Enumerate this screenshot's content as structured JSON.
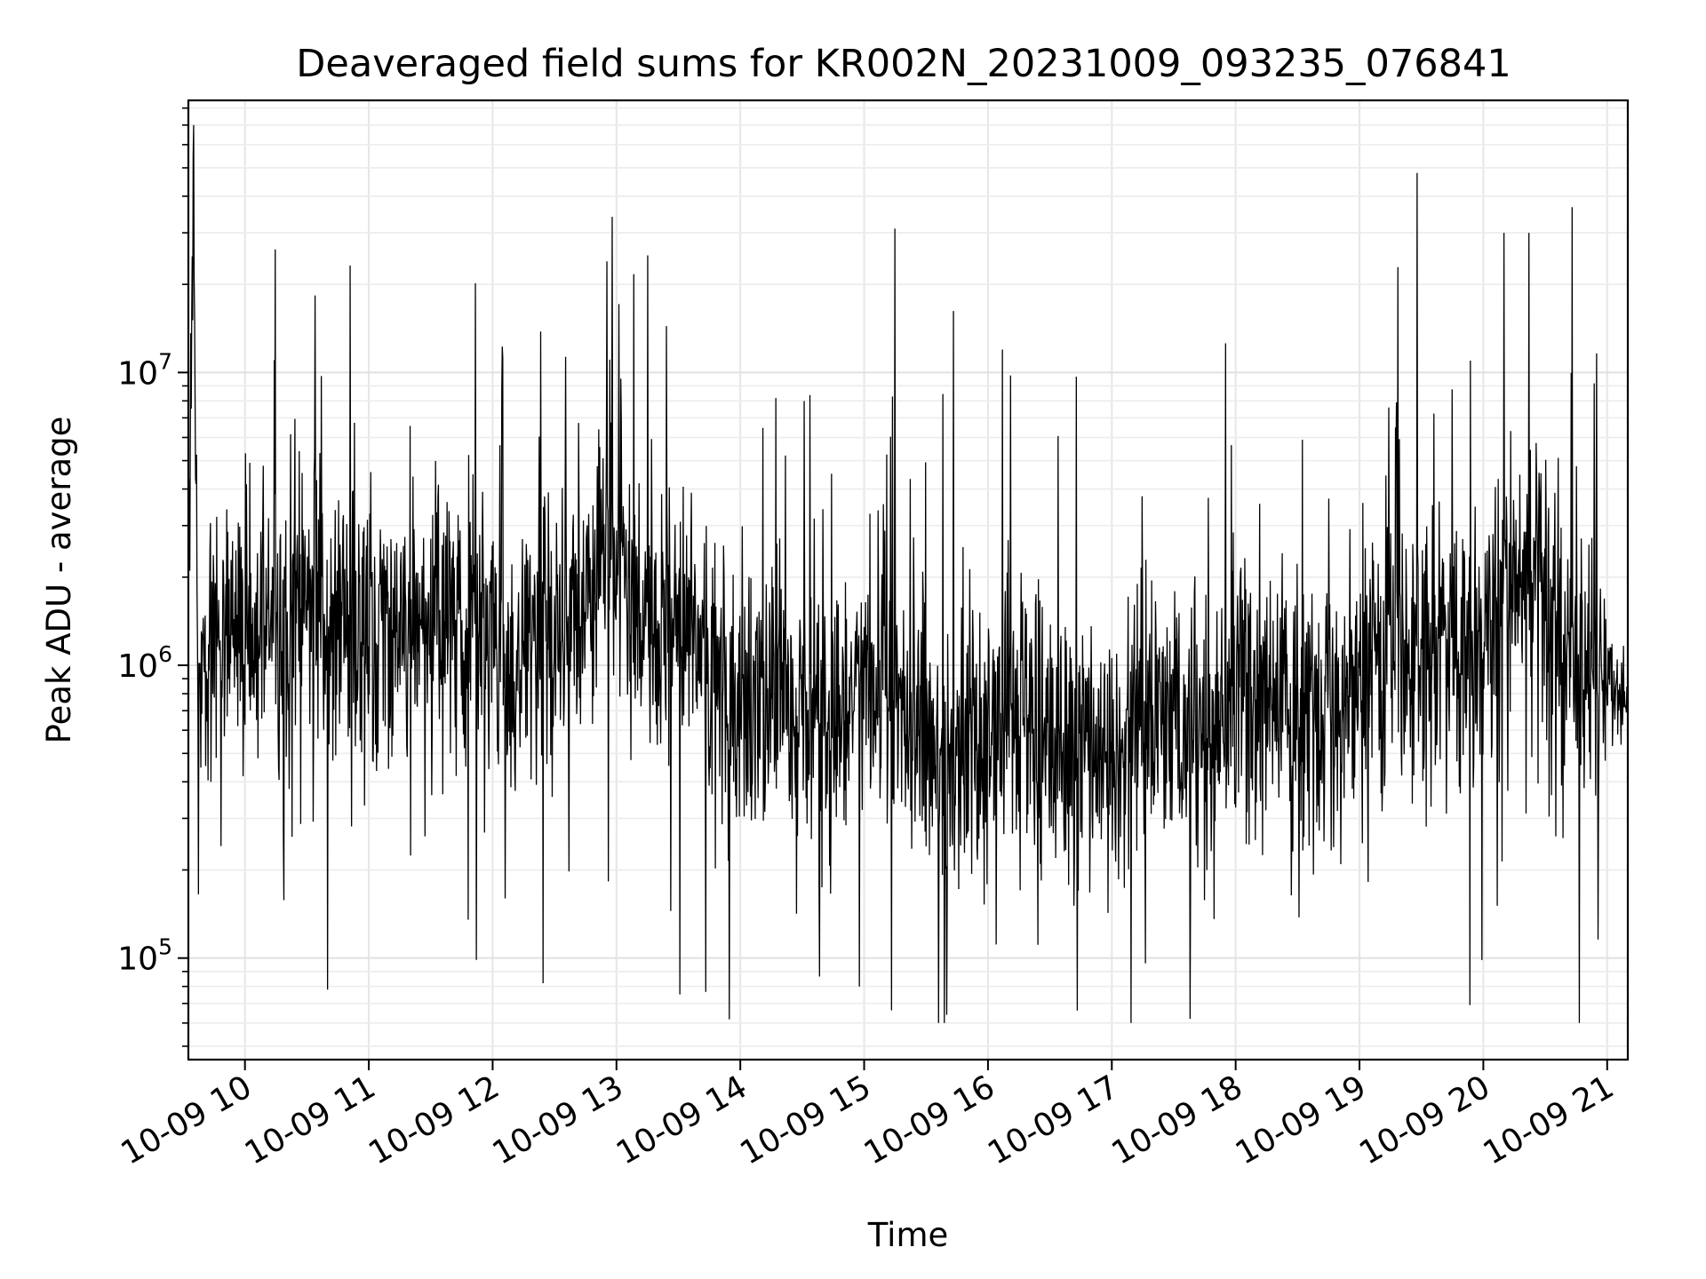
{
  "chart_data": {
    "type": "line",
    "title": "Deaveraged field sums for KR002N_20231009_093235_076841",
    "xlabel": "Time",
    "ylabel": "Peak ADU - average",
    "yscale": "log",
    "ylim": [
      45000,
      85000000
    ],
    "xlim": [
      "2023-10-09 09:32:35",
      "2023-10-09 21:10:00"
    ],
    "grid": true,
    "line_color": "#000000",
    "x_ticks": [
      {
        "value": "2023-10-09 10:00",
        "label": "10-09 10"
      },
      {
        "value": "2023-10-09 11:00",
        "label": "10-09 11"
      },
      {
        "value": "2023-10-09 12:00",
        "label": "10-09 12"
      },
      {
        "value": "2023-10-09 13:00",
        "label": "10-09 13"
      },
      {
        "value": "2023-10-09 14:00",
        "label": "10-09 14"
      },
      {
        "value": "2023-10-09 15:00",
        "label": "10-09 15"
      },
      {
        "value": "2023-10-09 16:00",
        "label": "10-09 16"
      },
      {
        "value": "2023-10-09 17:00",
        "label": "10-09 17"
      },
      {
        "value": "2023-10-09 18:00",
        "label": "10-09 18"
      },
      {
        "value": "2023-10-09 19:00",
        "label": "10-09 19"
      },
      {
        "value": "2023-10-09 20:00",
        "label": "10-09 20"
      },
      {
        "value": "2023-10-09 21:00",
        "label": "10-09 21"
      }
    ],
    "y_ticks": [
      {
        "value": 100000,
        "base": "10",
        "exp": "5"
      },
      {
        "value": 1000000,
        "base": "10",
        "exp": "6"
      },
      {
        "value": 10000000,
        "base": "10",
        "exp": "7"
      }
    ],
    "series": [
      {
        "x": [
          "2023-10-09 09:33",
          "2023-10-09 09:35",
          "2023-10-09 09:37",
          "2023-10-09 09:40",
          "2023-10-09 09:45",
          "2023-10-09 09:50",
          "2023-10-09 09:55",
          "2023-10-09 10:00",
          "2023-10-09 10:10",
          "2023-10-09 10:20",
          "2023-10-09 10:30",
          "2023-10-09 10:40",
          "2023-10-09 10:50",
          "2023-10-09 11:00",
          "2023-10-09 11:10",
          "2023-10-09 11:20",
          "2023-10-09 11:30",
          "2023-10-09 11:40",
          "2023-10-09 11:50",
          "2023-10-09 12:00",
          "2023-10-09 12:10",
          "2023-10-09 12:20",
          "2023-10-09 12:30",
          "2023-10-09 12:40",
          "2023-10-09 12:50",
          "2023-10-09 13:00",
          "2023-10-09 13:10",
          "2023-10-09 13:20",
          "2023-10-09 13:30",
          "2023-10-09 13:40",
          "2023-10-09 13:50",
          "2023-10-09 14:00",
          "2023-10-09 14:10",
          "2023-10-09 14:20",
          "2023-10-09 14:30",
          "2023-10-09 14:40",
          "2023-10-09 14:50",
          "2023-10-09 15:00",
          "2023-10-09 15:10",
          "2023-10-09 15:20",
          "2023-10-09 15:30",
          "2023-10-09 15:40",
          "2023-10-09 15:50",
          "2023-10-09 16:00",
          "2023-10-09 16:10",
          "2023-10-09 16:20",
          "2023-10-09 16:30",
          "2023-10-09 16:40",
          "2023-10-09 16:50",
          "2023-10-09 17:00",
          "2023-10-09 17:10",
          "2023-10-09 17:20",
          "2023-10-09 17:30",
          "2023-10-09 17:40",
          "2023-10-09 17:50",
          "2023-10-09 18:00",
          "2023-10-09 18:10",
          "2023-10-09 18:20",
          "2023-10-09 18:30",
          "2023-10-09 18:40",
          "2023-10-09 18:50",
          "2023-10-09 19:00",
          "2023-10-09 19:10",
          "2023-10-09 19:20",
          "2023-10-09 19:30",
          "2023-10-09 19:40",
          "2023-10-09 19:50",
          "2023-10-09 20:00",
          "2023-10-09 20:10",
          "2023-10-09 20:20",
          "2023-10-09 20:30",
          "2023-10-09 20:40",
          "2023-10-09 20:50",
          "2023-10-09 21:00",
          "2023-10-09 21:05",
          "2023-10-09 21:10"
        ],
        "y": [
          2400000,
          45000000,
          900000,
          1100000,
          1300000,
          1500000,
          1400000,
          1300000,
          1400000,
          1600000,
          1700000,
          1500000,
          1300000,
          1200000,
          1300000,
          1500000,
          1600000,
          1400000,
          1300000,
          1200000,
          1100000,
          1200000,
          1300000,
          1500000,
          2000000,
          2400000,
          1500000,
          1400000,
          1500000,
          1300000,
          900000,
          800000,
          700000,
          700000,
          650000,
          600000,
          650000,
          800000,
          900000,
          700000,
          500000,
          550000,
          600000,
          700000,
          800000,
          600000,
          550000,
          500000,
          450000,
          500000,
          600000,
          700000,
          650000,
          550000,
          600000,
          700000,
          800000,
          900000,
          700000,
          600000,
          700000,
          900000,
          1000000,
          1100000,
          1200000,
          1100000,
          1000000,
          1200000,
          1600000,
          1900000,
          1800000,
          1300000,
          1000000,
          900000,
          800000,
          750000
        ]
      }
    ],
    "annotations": [
      {
        "x": "2023-10-09 09:35",
        "y": 55000000
      },
      {
        "x": "2023-10-09 10:40",
        "y": 78000
      },
      {
        "x": "2023-10-09 12:58",
        "y": 34000000
      },
      {
        "x": "2023-10-09 15:15",
        "y": 31000000
      },
      {
        "x": "2023-10-09 15:40",
        "y": 64000
      },
      {
        "x": "2023-10-09 17:38",
        "y": 62000
      },
      {
        "x": "2023-10-09 19:28",
        "y": 48000000
      },
      {
        "x": "2023-10-09 20:10",
        "y": 30000000
      },
      {
        "x": "2023-10-09 20:22",
        "y": 30000000
      }
    ]
  }
}
